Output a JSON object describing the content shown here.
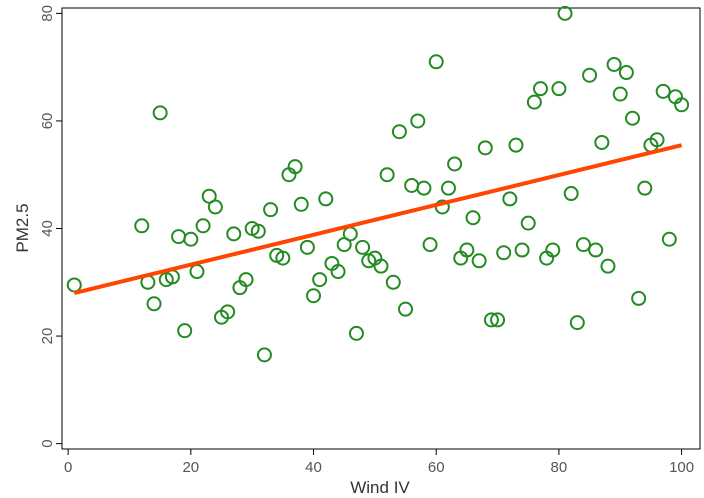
{
  "chart_data": {
    "type": "scatter",
    "xlabel": "Wind IV",
    "ylabel": "PM2.5",
    "xlim": [
      -1,
      103
    ],
    "ylim": [
      -1,
      81
    ],
    "xticks": [
      0,
      20,
      40,
      60,
      80,
      100
    ],
    "yticks": [
      0,
      20,
      40,
      60,
      80
    ],
    "grid": false,
    "colors": {
      "points": "#228B22",
      "fit_line": "#FF4500",
      "axes": "#000000"
    },
    "series": [
      {
        "marker": "hollow-circle",
        "points": [
          [
            1,
            29.5
          ],
          [
            12,
            40.5
          ],
          [
            13,
            30
          ],
          [
            14,
            26
          ],
          [
            15,
            61.5
          ],
          [
            16,
            30.5
          ],
          [
            17,
            31
          ],
          [
            18,
            38.5
          ],
          [
            19,
            21
          ],
          [
            20,
            38
          ],
          [
            21,
            32
          ],
          [
            22,
            40.5
          ],
          [
            23,
            46
          ],
          [
            24,
            44
          ],
          [
            25,
            23.5
          ],
          [
            26,
            24.5
          ],
          [
            27,
            39
          ],
          [
            28,
            29
          ],
          [
            29,
            30.5
          ],
          [
            30,
            40
          ],
          [
            31,
            39.5
          ],
          [
            32,
            16.5
          ],
          [
            33,
            43.5
          ],
          [
            34,
            35
          ],
          [
            35,
            34.5
          ],
          [
            36,
            50
          ],
          [
            37,
            51.5
          ],
          [
            38,
            44.5
          ],
          [
            39,
            36.5
          ],
          [
            40,
            27.5
          ],
          [
            41,
            30.5
          ],
          [
            42,
            45.5
          ],
          [
            43,
            33.5
          ],
          [
            44,
            32
          ],
          [
            45,
            37
          ],
          [
            46,
            39
          ],
          [
            47,
            20.5
          ],
          [
            48,
            36.5
          ],
          [
            49,
            34
          ],
          [
            50,
            34.5
          ],
          [
            51,
            33
          ],
          [
            52,
            50
          ],
          [
            53,
            30
          ],
          [
            54,
            58
          ],
          [
            55,
            25
          ],
          [
            56,
            48
          ],
          [
            57,
            60
          ],
          [
            58,
            47.5
          ],
          [
            59,
            37
          ],
          [
            60,
            71
          ],
          [
            61,
            44
          ],
          [
            62,
            47.5
          ],
          [
            63,
            52
          ],
          [
            64,
            34.5
          ],
          [
            65,
            36
          ],
          [
            66,
            42
          ],
          [
            67,
            34
          ],
          [
            68,
            55
          ],
          [
            69,
            23
          ],
          [
            70,
            23
          ],
          [
            71,
            35.5
          ],
          [
            72,
            45.5
          ],
          [
            73,
            55.5
          ],
          [
            74,
            36
          ],
          [
            75,
            41
          ],
          [
            76,
            63.5
          ],
          [
            77,
            66
          ],
          [
            78,
            34.5
          ],
          [
            79,
            36
          ],
          [
            80,
            66
          ],
          [
            81,
            80
          ],
          [
            82,
            46.5
          ],
          [
            83,
            22.5
          ],
          [
            84,
            37
          ],
          [
            85,
            68.5
          ],
          [
            86,
            36
          ],
          [
            87,
            56
          ],
          [
            88,
            33
          ],
          [
            89,
            70.5
          ],
          [
            90,
            65
          ],
          [
            91,
            69
          ],
          [
            92,
            60.5
          ],
          [
            93,
            27
          ],
          [
            94,
            47.5
          ],
          [
            95,
            55.5
          ],
          [
            96,
            56.5
          ],
          [
            97,
            65.5
          ],
          [
            98,
            38
          ],
          [
            99,
            64.5
          ],
          [
            100,
            63
          ]
        ]
      }
    ],
    "fit_line": {
      "x": [
        1,
        100
      ],
      "y": [
        28,
        55.5
      ]
    }
  }
}
